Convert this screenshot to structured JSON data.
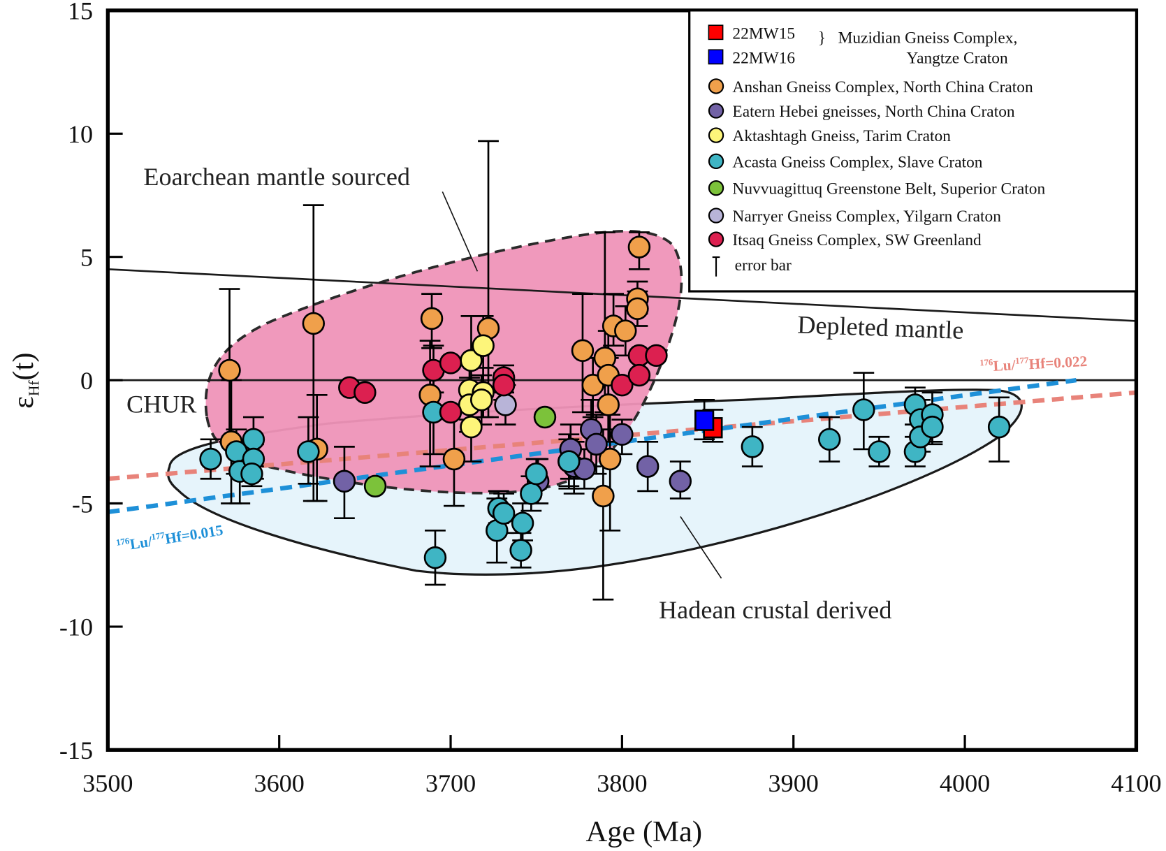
{
  "chart_data": {
    "type": "scatter",
    "title": "",
    "xlabel": "Age (Ma)",
    "ylabel_main": "ε",
    "ylabel_sub": "Hf",
    "ylabel_tail": "(t)",
    "xlim": [
      3500,
      4100
    ],
    "ylim": [
      -15,
      15
    ],
    "xticks": [
      3500,
      3600,
      3700,
      3800,
      3900,
      4000,
      4100
    ],
    "yticks": [
      15,
      10,
      5,
      0,
      -5,
      -10,
      -15
    ],
    "grid": false,
    "legend_position": "top-right",
    "reference_lines": [
      {
        "name": "Depleted mantle",
        "label": "Depleted mantle",
        "color": "#1a1a1a",
        "points": [
          [
            3500,
            4.5
          ],
          [
            4100,
            2.4
          ]
        ]
      },
      {
        "name": "CHUR",
        "label": "CHUR",
        "color": "#1a1a1a",
        "points": [
          [
            3500,
            0
          ],
          [
            4100,
            0
          ]
        ]
      },
      {
        "name": "Lu/Hf 0.022",
        "label_pre": "176",
        "label_mid": "Lu/",
        "label_sup2": "177",
        "label_post": "Hf=0.022",
        "color": "#e8837a",
        "points": [
          [
            3500,
            -4.0
          ],
          [
            4100,
            -0.5
          ]
        ]
      },
      {
        "name": "Lu/Hf 0.015",
        "label_pre": "176",
        "label_mid": "Lu/",
        "label_sup2": "177",
        "label_post": "Hf=0.015",
        "color": "#1e90d8",
        "points": [
          [
            3500,
            -5.35
          ],
          [
            4065,
            0.0
          ]
        ]
      }
    ],
    "regions": [
      {
        "name": "Eoarchean mantle sourced",
        "label": "Eoarchean mantle sourced",
        "fill": "#ef93b8"
      },
      {
        "name": "Hadean crustal derived",
        "label": "Hadean crustal derived",
        "fill": "#e6f4fb"
      }
    ],
    "legend": {
      "bracket_label_1": "Muzidian Gneiss Complex,",
      "bracket_label_2": "Yangtze Craton",
      "error_bar_label": "error bar",
      "entries": [
        {
          "key": "mw15",
          "label": "22MW15",
          "marker": "square",
          "color": "#ff0000"
        },
        {
          "key": "mw16",
          "label": "22MW16",
          "marker": "square",
          "color": "#0000ff"
        },
        {
          "key": "anshan",
          "label": "Anshan Gneiss Complex, North China Craton",
          "marker": "circle",
          "color": "#f0a04b"
        },
        {
          "key": "hebei",
          "label": "Eatern Hebei gneisses, North China Craton",
          "marker": "circle",
          "color": "#7262a6"
        },
        {
          "key": "aktash",
          "label": "Aktashtagh Gneiss, Tarim Craton",
          "marker": "circle",
          "color": "#fdf57a"
        },
        {
          "key": "acasta",
          "label": "Acasta Gneiss Complex, Slave Craton",
          "marker": "circle",
          "color": "#3fb5c4"
        },
        {
          "key": "nuvv",
          "label": "Nuvvuagittuq Greenstone Belt, Superior Craton",
          "marker": "circle",
          "color": "#7cc23a"
        },
        {
          "key": "narryer",
          "label": "Narryer Gneiss Complex, Yilgarn Craton",
          "marker": "circle",
          "color": "#b8b4d8"
        },
        {
          "key": "itsaq",
          "label": "Itsaq Gneiss Complex, SW Greenland",
          "marker": "circle",
          "color": "#dc2050"
        }
      ]
    },
    "series": [
      {
        "name": "22MW15",
        "key": "mw15",
        "points": [
          [
            3853,
            -1.9,
            -2.5,
            -1.2
          ]
        ]
      },
      {
        "name": "22MW16",
        "key": "mw16",
        "points": [
          [
            3848,
            -1.6,
            -2.4,
            -0.8
          ]
        ]
      },
      {
        "name": "Anshan",
        "key": "anshan",
        "points": [
          [
            3571,
            0.4,
            -2.5,
            3.7
          ],
          [
            3572,
            -2.5,
            -5.0,
            0.0
          ],
          [
            3620,
            2.3,
            -4.9,
            7.1
          ],
          [
            3622,
            -2.8,
            -4.9,
            -0.6
          ],
          [
            3689,
            2.5,
            1.3,
            3.5
          ],
          [
            3688,
            -0.6,
            -3.5,
            1.6
          ],
          [
            3702,
            -3.2,
            -5.1,
            -1.3
          ],
          [
            3722,
            2.1,
            -1.5,
            9.7
          ],
          [
            3777,
            1.2,
            -1.3,
            3.5
          ],
          [
            3790,
            0.9,
            -1.3,
            6.0
          ],
          [
            3783,
            -0.2,
            -1.5,
            0.9
          ],
          [
            3792,
            0.2,
            -2.0,
            2.0
          ],
          [
            3795,
            2.2,
            1.4,
            3.5
          ],
          [
            3802,
            2.0,
            1.0,
            3.0
          ],
          [
            3792,
            -1.0,
            -2.5,
            0.9
          ],
          [
            3793,
            -3.2,
            -6.1,
            -1.4
          ],
          [
            3789,
            -4.7,
            -8.9,
            -2.0
          ],
          [
            3810,
            5.4,
            4.5,
            6.0
          ],
          [
            3809,
            3.3,
            2.7,
            4.0
          ],
          [
            3809,
            2.9,
            2.2,
            3.6
          ]
        ]
      },
      {
        "name": "Eastern Hebei",
        "key": "hebei",
        "points": [
          [
            3638,
            -4.1,
            -5.6,
            -2.7
          ],
          [
            3751,
            -4.1,
            -5.0,
            -3.2
          ],
          [
            3770,
            -2.8,
            -4.0,
            -1.8
          ],
          [
            3769,
            -3.3,
            -4.4,
            -2.2
          ],
          [
            3772,
            -3.5,
            -4.6,
            -2.5
          ],
          [
            3778,
            -3.6,
            -4.4,
            -2.8
          ],
          [
            3782,
            -2.0,
            -3.5,
            -0.8
          ],
          [
            3785,
            -2.6,
            -3.8,
            -1.4
          ],
          [
            3800,
            -2.2,
            -3.0,
            -1.6
          ],
          [
            3815,
            -3.5,
            -4.5,
            -2.5
          ],
          [
            3834,
            -4.1,
            -4.8,
            -3.3
          ]
        ]
      },
      {
        "name": "Aktashtagh",
        "key": "aktash",
        "points": [
          [
            3712,
            0.8,
            -0.5,
            2.6
          ],
          [
            3719,
            1.4,
            -0.3,
            2.6
          ],
          [
            3711,
            -0.4,
            -1.6,
            0.8
          ],
          [
            3711,
            -1.0,
            -2.1,
            0.1
          ],
          [
            3719,
            -0.5,
            -1.5,
            0.5
          ],
          [
            3718,
            -0.8,
            -1.8,
            0.2
          ],
          [
            3712,
            -1.9,
            -3.3,
            -0.4
          ]
        ]
      },
      {
        "name": "Acasta",
        "key": "acasta",
        "points": [
          [
            3560,
            -3.2,
            -4.0,
            -2.4
          ],
          [
            3575,
            -2.9,
            -3.8,
            -2.0
          ],
          [
            3577,
            -3.7,
            -5.0,
            -3.0
          ],
          [
            3585,
            -2.4,
            -3.5,
            -1.5
          ],
          [
            3585,
            -3.2,
            -4.0,
            -2.6
          ],
          [
            3584,
            -3.8,
            -4.3,
            -3.2
          ],
          [
            3617,
            -2.9,
            -4.2,
            -1.5
          ],
          [
            3690,
            -1.3,
            -3.0,
            0.3
          ],
          [
            3691,
            -7.2,
            -8.3,
            -6.1
          ],
          [
            3728,
            -5.2,
            -5.8,
            -4.5
          ],
          [
            3727,
            -6.1,
            -7.4,
            -4.8
          ],
          [
            3731,
            -5.4,
            -6.2,
            -4.6
          ],
          [
            3741,
            -6.9,
            -7.6,
            -6.2
          ],
          [
            3742,
            -5.8,
            -6.5,
            -5.0
          ],
          [
            3747,
            -4.6,
            -5.3,
            -3.9
          ],
          [
            3750,
            -3.8,
            -4.4,
            -3.2
          ],
          [
            3769,
            -3.3,
            -4.3,
            -2.4
          ],
          [
            3876,
            -2.7,
            -3.5,
            -1.9
          ],
          [
            3921,
            -2.4,
            -3.3,
            -1.5
          ],
          [
            3941,
            -1.2,
            -2.8,
            0.3
          ],
          [
            3950,
            -2.9,
            -3.5,
            -2.3
          ],
          [
            3971,
            -1.0,
            -1.8,
            -0.3
          ],
          [
            3974,
            -1.6,
            -2.4,
            -0.8
          ],
          [
            3981,
            -1.4,
            -2.5,
            -0.5
          ],
          [
            3971,
            -2.9,
            -3.5,
            -2.3
          ],
          [
            3974,
            -2.3,
            -2.9,
            -1.7
          ],
          [
            3981,
            -1.9,
            -2.6,
            -1.2
          ],
          [
            4020,
            -1.9,
            -3.3,
            -0.7
          ]
        ]
      },
      {
        "name": "Nuvvuagittuq",
        "key": "nuvv",
        "points": [
          [
            3656,
            -4.3,
            -4.3,
            -4.3
          ],
          [
            3755,
            -1.5,
            -1.5,
            -1.5
          ]
        ]
      },
      {
        "name": "Narryer",
        "key": "narryer",
        "points": [
          [
            3732,
            -1.0,
            -1.8,
            -0.2
          ]
        ]
      },
      {
        "name": "Itsaq",
        "key": "itsaq",
        "points": [
          [
            3641,
            -0.3,
            -0.3,
            -0.3
          ],
          [
            3650,
            -0.5,
            -0.5,
            -0.5
          ],
          [
            3690,
            0.4,
            -0.5,
            1.4
          ],
          [
            3700,
            0.7,
            0.7,
            0.7
          ],
          [
            3700,
            -1.3,
            -1.3,
            -1.3
          ],
          [
            3731,
            0.1,
            -0.5,
            0.6
          ],
          [
            3731,
            -0.2,
            -0.8,
            0.3
          ],
          [
            3800,
            -0.2,
            -0.2,
            -0.2
          ],
          [
            3810,
            1.0,
            1.0,
            1.0
          ],
          [
            3810,
            0.2,
            0.2,
            0.2
          ],
          [
            3820,
            1.0,
            1.0,
            1.0
          ]
        ]
      }
    ]
  }
}
